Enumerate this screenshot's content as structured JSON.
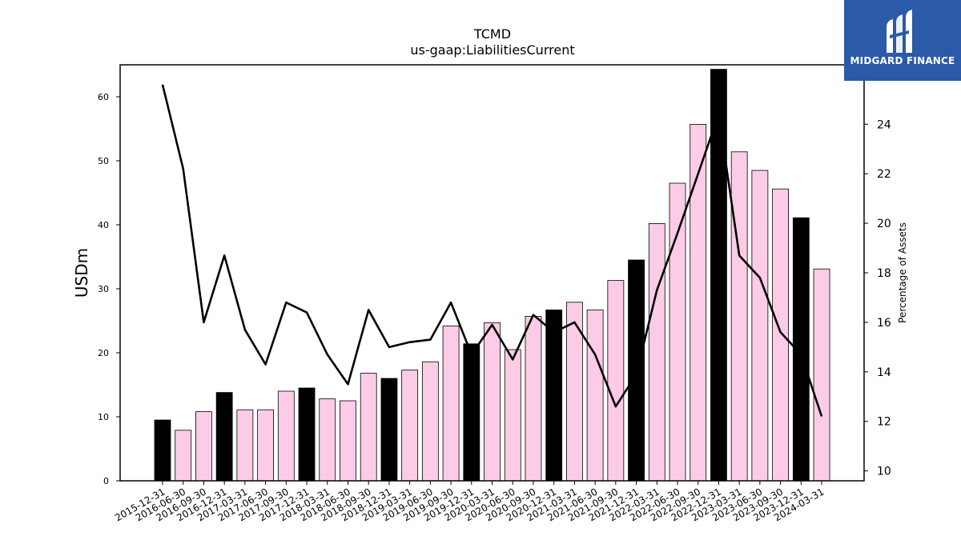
{
  "chart_data": {
    "type": "bar",
    "title": "TCMD",
    "subtitle": "us-gaap:LiabilitiesCurrent",
    "ylabel": "USDm",
    "y2label": "Percentage of Assets",
    "ylim": [
      0,
      65
    ],
    "y2lim": [
      9.6,
      26.4
    ],
    "yticks": [
      0,
      10,
      20,
      30,
      40,
      50,
      60
    ],
    "y2ticks": [
      10,
      12,
      14,
      16,
      18,
      20,
      22,
      24
    ],
    "categories": [
      "2015-12-31",
      "2016-06-30",
      "2016-09-30",
      "2016-12-31",
      "2017-03-31",
      "2017-06-30",
      "2017-09-30",
      "2017-12-31",
      "2018-03-31",
      "2018-06-30",
      "2018-09-30",
      "2018-12-31",
      "2019-03-31",
      "2019-06-30",
      "2019-09-30",
      "2019-12-31",
      "2020-03-31",
      "2020-06-30",
      "2020-09-30",
      "2020-12-31",
      "2021-03-31",
      "2021-06-30",
      "2021-09-30",
      "2021-12-31",
      "2022-03-31",
      "2022-06-30",
      "2022-09-30",
      "2022-12-31",
      "2023-03-31",
      "2023-06-30",
      "2023-09-30",
      "2023-12-31",
      "2024-03-31"
    ],
    "series": [
      {
        "type": "bar",
        "values": [
          9.5,
          7.9,
          10.8,
          13.8,
          11.1,
          11.1,
          14.0,
          14.5,
          12.8,
          12.5,
          16.8,
          16.0,
          17.3,
          18.6,
          24.2,
          21.4,
          24.7,
          20.5,
          25.7,
          26.7,
          27.9,
          26.7,
          31.3,
          34.5,
          40.2,
          46.5,
          55.7,
          64.3,
          51.4,
          48.5,
          45.6,
          41.1,
          33.1
        ],
        "highlight": [
          true,
          false,
          false,
          true,
          false,
          false,
          false,
          true,
          false,
          false,
          false,
          true,
          false,
          false,
          false,
          true,
          false,
          false,
          false,
          true,
          false,
          false,
          false,
          true,
          false,
          false,
          false,
          true,
          false,
          false,
          false,
          true,
          false
        ],
        "color": "#fccce6",
        "highlight_color": "#000000"
      },
      {
        "type": "line",
        "axis": "right",
        "values": [
          25.6,
          22.2,
          16.0,
          18.7,
          15.7,
          14.3,
          16.8,
          16.4,
          14.7,
          13.5,
          16.5,
          15.0,
          15.2,
          15.3,
          16.8,
          14.7,
          15.9,
          14.5,
          16.3,
          15.6,
          16.0,
          14.7,
          12.6,
          13.9,
          17.3,
          19.6,
          22.0,
          24.4,
          18.7,
          17.8,
          15.6,
          14.7,
          12.2
        ],
        "color": "#000000"
      }
    ]
  },
  "logo": {
    "brand": "MIDGARD FINANCE",
    "background": "#2a5aa8"
  }
}
